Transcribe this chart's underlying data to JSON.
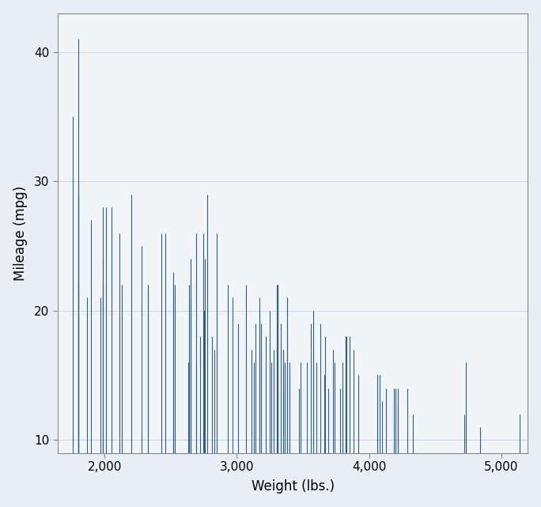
{
  "weight": [
    2930,
    3350,
    2640,
    3250,
    4080,
    3670,
    2110,
    2750,
    3400,
    3010,
    1800,
    2650,
    3380,
    1800,
    3130,
    3300,
    4290,
    4200,
    3820,
    3310,
    2200,
    2630,
    1990,
    2530,
    2830,
    3140,
    2690,
    2970,
    3310,
    3660,
    1800,
    2775,
    3575,
    2280,
    1760,
    3820,
    2460,
    3600,
    1970,
    1870,
    3830,
    3110,
    4060,
    2520,
    2750,
    3800,
    2720,
    1900,
    2650,
    4220,
    3310,
    3690,
    3260,
    3880,
    4060,
    3530,
    3820,
    3380,
    3470,
    3070,
    2330,
    3300,
    3350,
    3740,
    3400,
    3920,
    3850,
    4100,
    3730,
    3780,
    2650,
    1990,
    3180,
    2010,
    1800,
    2690,
    2050,
    2430,
    1990,
    2810,
    3630,
    3170,
    3220,
    3580,
    4330,
    4190,
    4220,
    3560,
    3480,
    2330,
    2130,
    1800,
    2520,
    2745,
    2760,
    2850,
    3170,
    3280,
    3360,
    3330,
    4720,
    4840,
    3310,
    4130,
    3800,
    5140,
    4730
  ],
  "mpg": [
    22,
    17,
    22,
    20,
    15,
    18,
    26,
    20,
    16,
    19,
    22,
    24,
    19,
    30,
    16,
    22,
    14,
    14,
    18,
    21,
    29,
    16,
    22,
    22,
    17,
    19,
    16,
    21,
    22,
    15,
    41,
    29,
    20,
    25,
    35,
    18,
    26,
    16,
    21,
    21,
    18,
    17,
    15,
    23,
    20,
    14,
    18,
    27,
    22,
    14,
    14,
    14,
    16,
    17,
    15,
    16,
    14,
    21,
    14,
    22,
    22,
    17,
    17,
    16,
    15,
    15,
    18,
    13,
    17,
    14,
    21,
    24,
    19,
    28,
    29,
    26,
    28,
    26,
    28,
    18,
    19,
    20,
    18,
    17,
    12,
    14,
    13,
    19,
    16,
    22,
    22,
    29,
    22,
    26,
    24,
    26,
    21,
    17,
    16,
    19,
    12,
    11,
    22,
    14,
    16,
    12,
    16
  ],
  "xlabel": "Weight (lbs.)",
  "ylabel": "Mileage (mpg)",
  "xlim": [
    1645,
    5200
  ],
  "ylim": [
    9,
    43
  ],
  "xticks": [
    2000,
    3000,
    4000,
    5000
  ],
  "yticks": [
    10,
    20,
    30,
    40
  ],
  "line_color": "#2d5f8a",
  "background_color": "#e8eef5",
  "plot_bg_color": "#f2f5f8",
  "grid_color": "#d0d8e0",
  "figsize": [
    6.84,
    6.41
  ],
  "dpi": 100
}
